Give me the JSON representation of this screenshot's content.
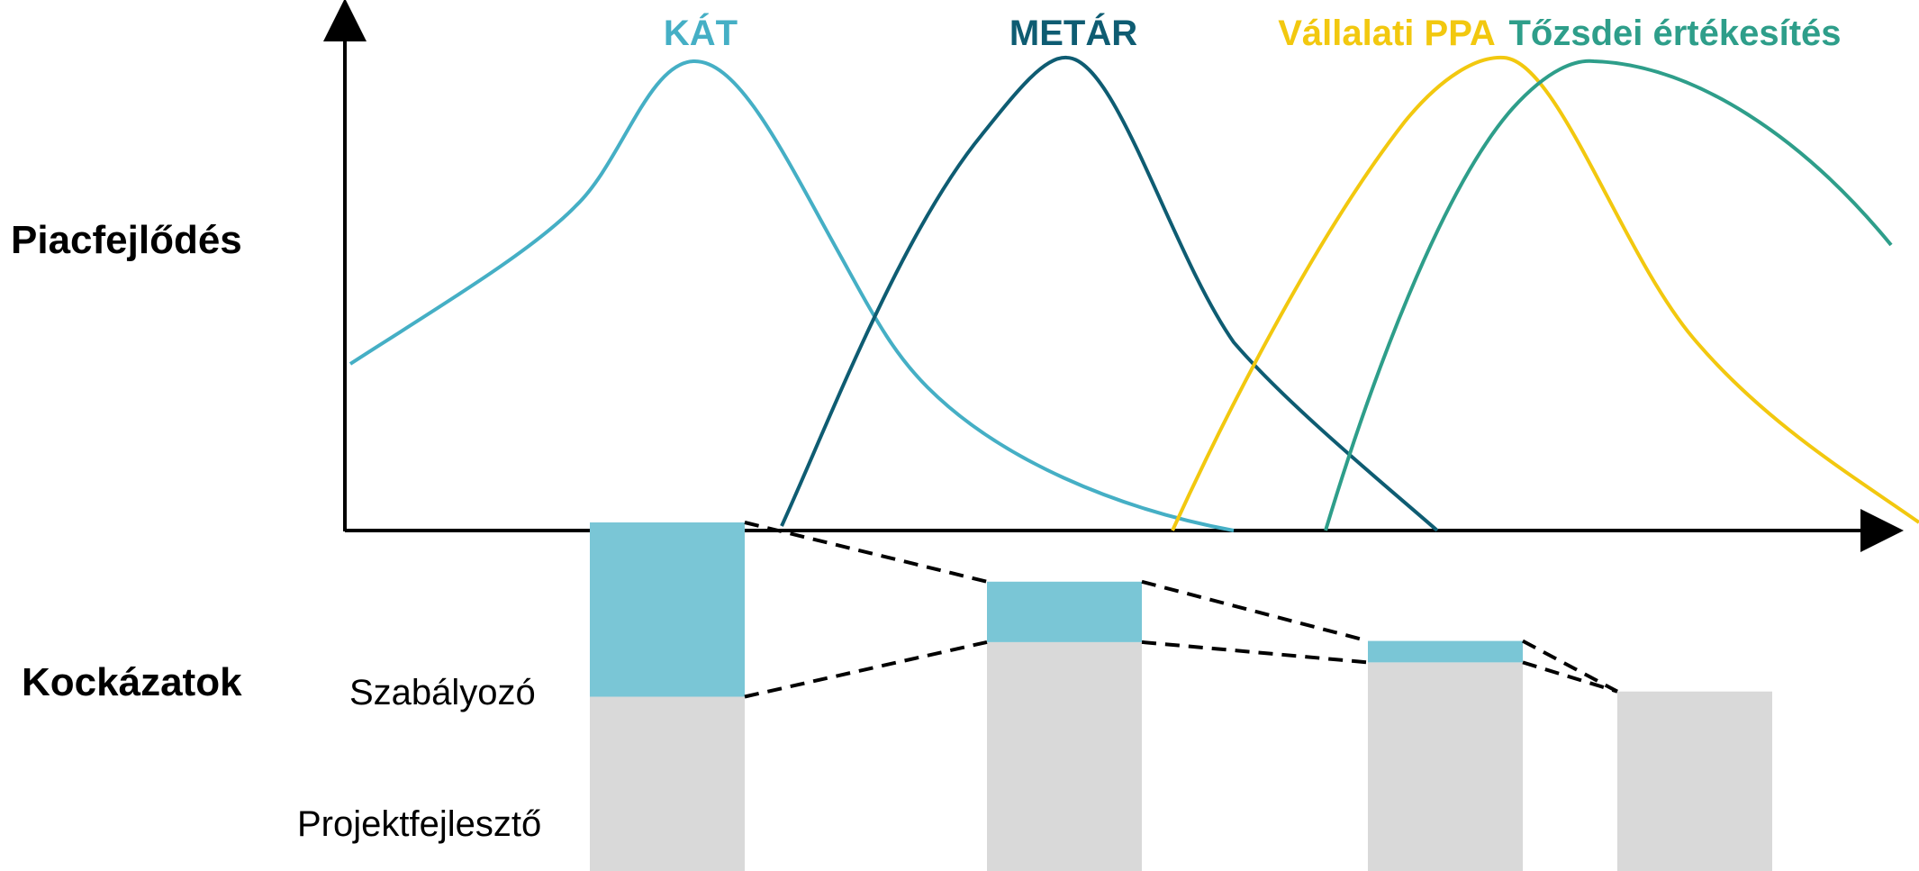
{
  "labels": {
    "market": "Piacfejlődés",
    "risks": "Kockázatok",
    "regulatory": "Szabályozó",
    "developer": "Projektfejlesztő"
  },
  "curves": [
    {
      "name": "KÁT",
      "color": "#45AFC5"
    },
    {
      "name": "METÁR",
      "color": "#0E5C72"
    },
    {
      "name": "Vállalati PPA",
      "color": "#F2C80F"
    },
    {
      "name": "Tőzsdei értékesítés",
      "color": "#2E9E8A"
    }
  ],
  "risk_bars": [
    {
      "regulatory_share": 0.5,
      "developer_share": 0.5
    },
    {
      "regulatory_share": 0.33,
      "developer_share": 0.67
    },
    {
      "regulatory_share": 0.05,
      "developer_share": 0.95
    },
    {
      "regulatory_share": 0.0,
      "developer_share": 1.0
    }
  ],
  "colors": {
    "regulatory": "#7AC6D6",
    "developer": "#D9D9D9",
    "axis": "#000000",
    "dash": "#000000"
  }
}
